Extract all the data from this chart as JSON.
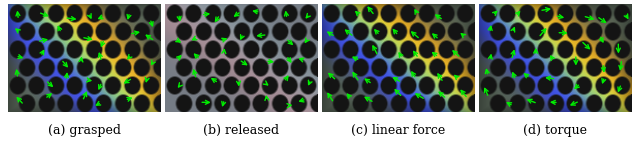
{
  "captions": [
    "(a) grasped",
    "(b) released",
    "(c) linear force",
    "(d) torque"
  ],
  "n_panels": 4,
  "fig_width": 6.4,
  "fig_height": 1.44,
  "dpi": 100,
  "caption_fontsize": 9,
  "caption_color": "#000000",
  "arrow_color": "#00ee00",
  "arrow_seeds": [
    42,
    123,
    7,
    99
  ]
}
